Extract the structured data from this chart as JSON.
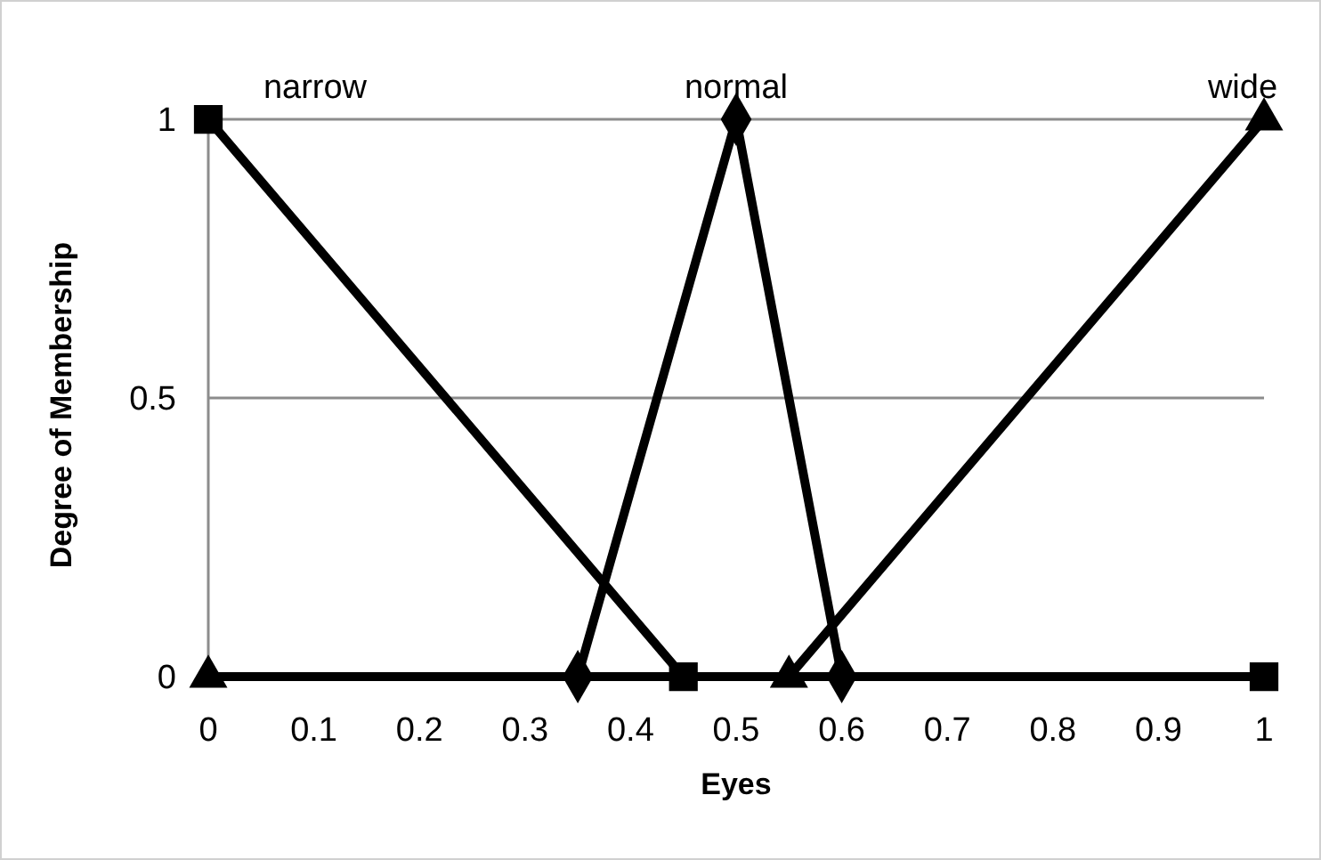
{
  "chart_data": {
    "type": "line",
    "xlabel": "Eyes",
    "ylabel": "Degree of Membership",
    "xlim": [
      0,
      1
    ],
    "ylim": [
      0,
      1
    ],
    "xticks": [
      0,
      0.1,
      0.2,
      0.3,
      0.4,
      0.5,
      0.6,
      0.7,
      0.8,
      0.9,
      1
    ],
    "yticks": [
      0,
      0.5,
      1
    ],
    "grid": "y",
    "series": [
      {
        "name": "narrow",
        "color": "#000000",
        "marker": "square",
        "x": [
          0,
          0.45,
          1
        ],
        "values": [
          1,
          0,
          0
        ]
      },
      {
        "name": "normal",
        "color": "#000000",
        "marker": "diamond",
        "x": [
          0.35,
          0.5,
          0.6
        ],
        "values": [
          0,
          1,
          0
        ]
      },
      {
        "name": "wide",
        "color": "#000000",
        "marker": "triangle",
        "x": [
          0,
          0.55,
          1
        ],
        "values": [
          0,
          0,
          1
        ]
      }
    ]
  }
}
